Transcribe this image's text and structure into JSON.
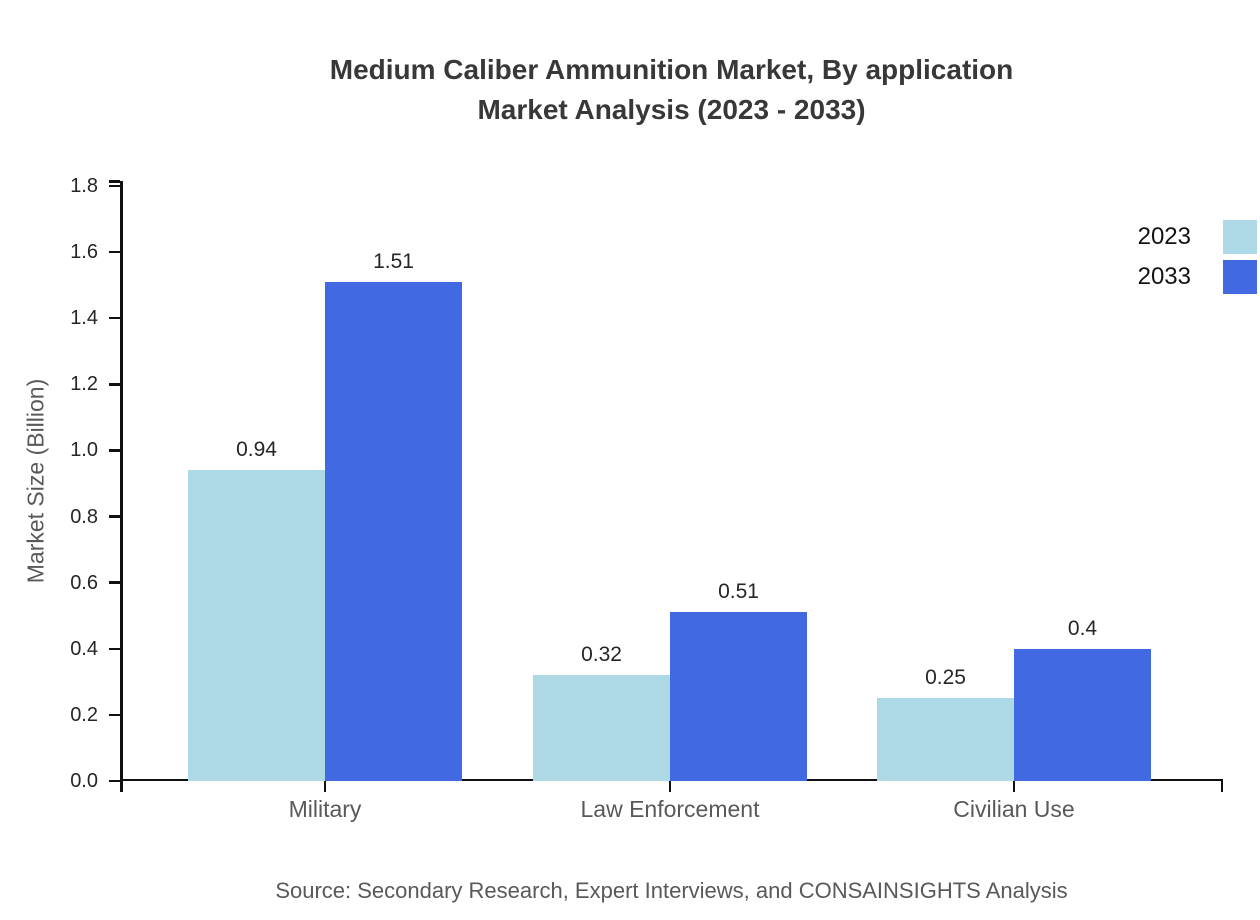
{
  "title": {
    "line1": "Medium Caliber Ammunition Market, By application",
    "line2": "Market Analysis (2023 - 2033)"
  },
  "source": "Source: Secondary Research, Expert Interviews, and CONSAINSIGHTS Analysis",
  "chart_data": {
    "type": "bar",
    "title": "Medium Caliber Ammunition Market, By application Market Analysis (2023 - 2033)",
    "categories": [
      "Military",
      "Law Enforcement",
      "Civilian Use"
    ],
    "series": [
      {
        "name": "2023",
        "color": "#ADD8E6",
        "values": [
          0.94,
          0.32,
          0.25
        ]
      },
      {
        "name": "2033",
        "color": "#4169E1",
        "values": [
          1.51,
          0.51,
          0.4
        ]
      }
    ],
    "xlabel": "",
    "ylabel": "Market Size (Billion)",
    "ylim": [
      0,
      1.8
    ],
    "ytick_step": 0.2,
    "ytick_labels": [
      "0.0",
      "0.2",
      "0.4",
      "0.6",
      "0.8",
      "1.0",
      "1.2",
      "1.4",
      "1.6",
      "1.8"
    ],
    "grid": false,
    "legend_position": "outside-top-right",
    "bar_value_labels": [
      "0.94",
      "1.51",
      "0.32",
      "0.51",
      "0.25",
      "0.4"
    ]
  },
  "colors": {
    "series_2023": "#ADD8E6",
    "series_2033": "#4169E1",
    "axis": "#111111",
    "title_text": "#383838",
    "tick_label_text": "#262626",
    "category_label_text": "#595959",
    "source_text": "#595959",
    "legend_text": "#141414",
    "background": "#ffffff"
  }
}
